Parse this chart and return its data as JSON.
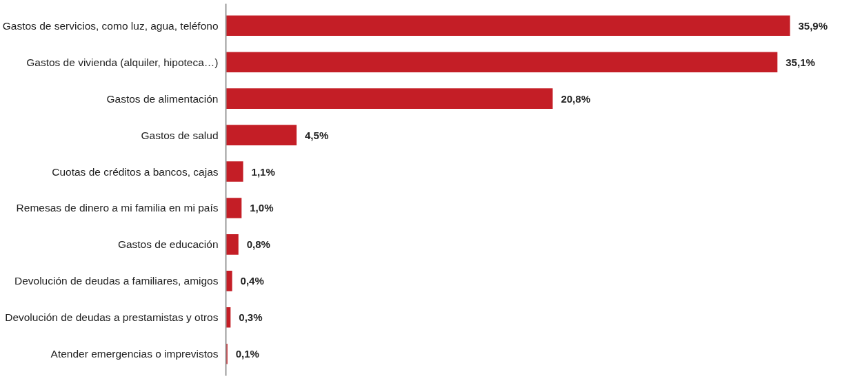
{
  "chart_data": {
    "type": "bar",
    "orientation": "horizontal",
    "categories": [
      "Gastos de servicios, como luz, agua, teléfono",
      "Gastos de vivienda (alquiler, hipoteca…)",
      "Gastos de alimentación",
      "Gastos de salud",
      "Cuotas de créditos a bancos, cajas",
      "Remesas de dinero a mi familia en mi país",
      "Gastos de educación",
      "Devolución de deudas a familiares, amigos",
      "Devolución de deudas a prestamistas y otros",
      "Atender emergencias o imprevistos"
    ],
    "values": [
      35.9,
      35.1,
      20.8,
      4.5,
      1.1,
      1.0,
      0.8,
      0.4,
      0.3,
      0.1
    ],
    "value_labels": [
      "35,9%",
      "35,1%",
      "20,8%",
      "4,5%",
      "1,1%",
      "1,0%",
      "0,8%",
      "0,4%",
      "0,3%",
      "0,1%"
    ],
    "color": "#c41e26",
    "grid": false,
    "tick_labels": "y"
  }
}
